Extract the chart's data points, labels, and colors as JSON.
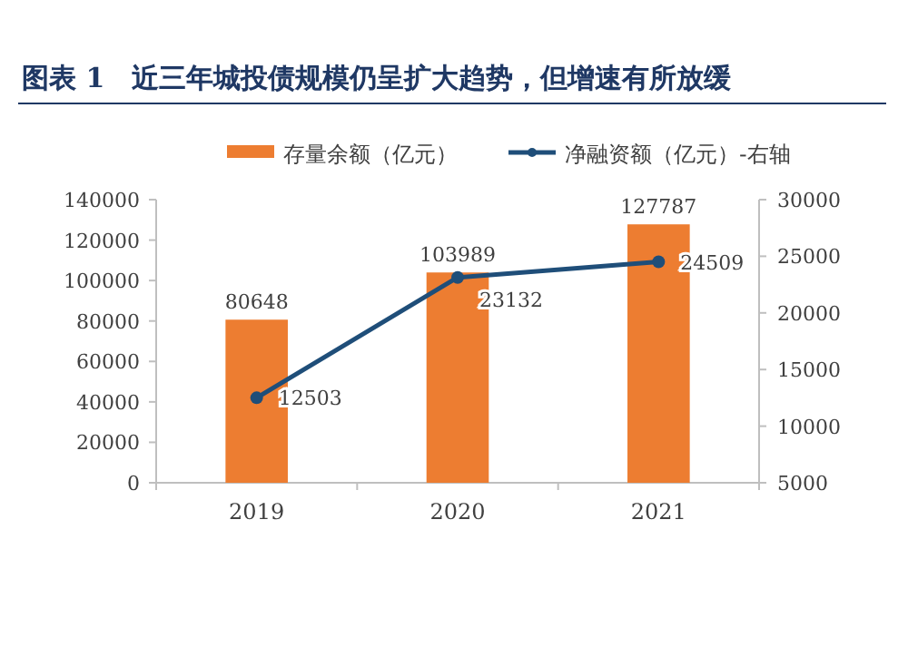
{
  "chart_data": {
    "type": "bar",
    "title": "图表 1　近三年城投债规模仍呈扩大趋势，但增速有所放缓",
    "categories": [
      "2019",
      "2020",
      "2021"
    ],
    "series": [
      {
        "name": "存量余额（亿元）",
        "color": "#ed7d31",
        "values": [
          80648,
          103989,
          127787
        ]
      },
      {
        "name": "净融资额（亿元）-右轴",
        "type": "line",
        "axis": "y2",
        "color": "#1f4e79",
        "values": [
          12503,
          23132,
          24509
        ]
      }
    ],
    "ylim": [
      0,
      140000
    ],
    "yticks": [
      0,
      20000,
      40000,
      60000,
      80000,
      100000,
      120000,
      140000
    ],
    "y2lim": [
      5000,
      30000
    ],
    "y2ticks": [
      5000,
      10000,
      15000,
      20000,
      25000,
      30000
    ],
    "data_labels": true,
    "legend": "top",
    "marker": "circle",
    "grid": false
  }
}
